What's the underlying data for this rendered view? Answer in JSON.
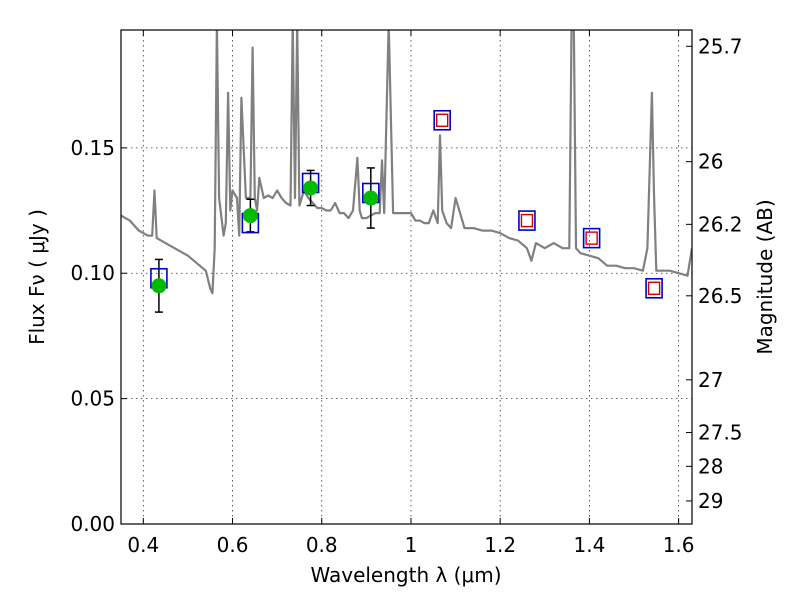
{
  "chart_data": {
    "type": "scatter",
    "xlabel": "Wavelength  λ (μm)",
    "ylabel": "Flux  Fν  ( μJy )",
    "ylabel_right": "Magnitude (AB)",
    "xlim": [
      0.35,
      1.63
    ],
    "ylim": [
      0.0,
      0.197
    ],
    "grid": true,
    "x_ticks": [
      0.4,
      0.6,
      0.8,
      1.0,
      1.2,
      1.4,
      1.6
    ],
    "x_tick_labels": [
      "0.4",
      "0.6",
      "0.8",
      "1",
      "1.2",
      "1.4",
      "1.6"
    ],
    "y_ticks": [
      0.0,
      0.05,
      0.1,
      0.15
    ],
    "y_tick_labels": [
      "0.00",
      "0.05",
      "0.10",
      "0.15"
    ],
    "right_ticks": [
      {
        "flux": 0.1905,
        "label": "25.7"
      },
      {
        "flux": 0.1445,
        "label": "26"
      },
      {
        "flux": 0.1195,
        "label": "26.2"
      },
      {
        "flux": 0.091,
        "label": "26.5"
      },
      {
        "flux": 0.0575,
        "label": "27"
      },
      {
        "flux": 0.0365,
        "label": "27.5"
      },
      {
        "flux": 0.023,
        "label": "28"
      },
      {
        "flux": 0.0092,
        "label": "29"
      }
    ],
    "series": [
      {
        "style": "line",
        "color": "#808080",
        "x": [
          0.35,
          0.37,
          0.39,
          0.41,
          0.42,
          0.425,
          0.43,
          0.44,
          0.46,
          0.48,
          0.5,
          0.52,
          0.54,
          0.55,
          0.555,
          0.56,
          0.565,
          0.57,
          0.58,
          0.585,
          0.59,
          0.595,
          0.6,
          0.61,
          0.615,
          0.62,
          0.63,
          0.64,
          0.645,
          0.65,
          0.655,
          0.66,
          0.67,
          0.68,
          0.69,
          0.7,
          0.71,
          0.72,
          0.73,
          0.735,
          0.74,
          0.745,
          0.75,
          0.755,
          0.76,
          0.77,
          0.78,
          0.79,
          0.8,
          0.81,
          0.82,
          0.83,
          0.84,
          0.85,
          0.86,
          0.87,
          0.88,
          0.885,
          0.89,
          0.9,
          0.92,
          0.93,
          0.935,
          0.94,
          0.95,
          0.96,
          0.97,
          0.98,
          0.99,
          1.0,
          1.01,
          1.02,
          1.03,
          1.04,
          1.05,
          1.06,
          1.065,
          1.07,
          1.08,
          1.09,
          1.1,
          1.12,
          1.14,
          1.16,
          1.18,
          1.2,
          1.22,
          1.24,
          1.26,
          1.27,
          1.28,
          1.3,
          1.32,
          1.34,
          1.355,
          1.36,
          1.365,
          1.37,
          1.38,
          1.4,
          1.42,
          1.44,
          1.46,
          1.48,
          1.5,
          1.52,
          1.53,
          1.54,
          1.545,
          1.55,
          1.56,
          1.58,
          1.6,
          1.62,
          1.63
        ],
        "y": [
          0.123,
          0.121,
          0.117,
          0.115,
          0.115,
          0.133,
          0.114,
          0.113,
          0.111,
          0.109,
          0.107,
          0.104,
          0.101,
          0.094,
          0.092,
          0.11,
          0.2,
          0.13,
          0.115,
          0.12,
          0.172,
          0.125,
          0.133,
          0.13,
          0.115,
          0.17,
          0.13,
          0.13,
          0.19,
          0.13,
          0.125,
          0.138,
          0.13,
          0.131,
          0.13,
          0.133,
          0.13,
          0.128,
          0.127,
          0.2,
          0.13,
          0.2,
          0.127,
          0.13,
          0.133,
          0.13,
          0.128,
          0.126,
          0.126,
          0.125,
          0.125,
          0.128,
          0.124,
          0.124,
          0.122,
          0.125,
          0.146,
          0.125,
          0.122,
          0.122,
          0.124,
          0.124,
          0.145,
          0.124,
          0.2,
          0.124,
          0.124,
          0.124,
          0.124,
          0.124,
          0.121,
          0.121,
          0.12,
          0.12,
          0.125,
          0.12,
          0.155,
          0.125,
          0.12,
          0.118,
          0.13,
          0.118,
          0.118,
          0.117,
          0.117,
          0.116,
          0.114,
          0.113,
          0.11,
          0.105,
          0.112,
          0.11,
          0.112,
          0.11,
          0.11,
          0.2,
          0.2,
          0.11,
          0.108,
          0.107,
          0.106,
          0.103,
          0.103,
          0.102,
          0.102,
          0.101,
          0.11,
          0.172,
          0.13,
          0.101,
          0.101,
          0.101,
          0.1,
          0.099,
          0.11
        ]
      },
      {
        "name": "",
        "style": "points-green",
        "color": "#00bb00",
        "x": [
          0.435,
          0.64,
          0.775,
          0.91
        ],
        "y": [
          0.095,
          0.123,
          0.134,
          0.13
        ],
        "err": [
          0.0105,
          0.0065,
          0.007,
          0.012
        ]
      },
      {
        "style": "squares-blue",
        "color": "#0000cc",
        "x": [
          0.435,
          0.64,
          0.775,
          0.91,
          1.07,
          1.26,
          1.405,
          1.545
        ],
        "y": [
          0.098,
          0.12,
          0.136,
          0.132,
          0.161,
          0.121,
          0.114,
          0.094
        ]
      },
      {
        "style": "squares-red",
        "color": "#cc0000",
        "x": [
          1.07,
          1.26,
          1.405,
          1.545
        ],
        "y": [
          0.161,
          0.121,
          0.114,
          0.094
        ]
      }
    ]
  }
}
